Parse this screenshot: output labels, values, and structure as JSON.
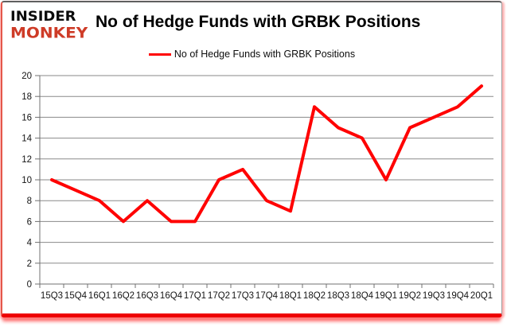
{
  "logo": {
    "line1": "INSIDER",
    "line2": "MONKEY"
  },
  "header": {
    "title": "No of Hedge Funds with GRBK Positions"
  },
  "legend": {
    "label": "No of Hedge Funds with GRBK Positions"
  },
  "colors": {
    "line": "#ff0000",
    "grid": "#8a8a8a",
    "axis": "#707070",
    "tick_text": "#151515",
    "logo_monkey": "#ce3b27",
    "border_bottom": "#ee0000"
  },
  "chart_data": {
    "type": "line",
    "title": "No of Hedge Funds with GRBK Positions",
    "legend_entries": [
      "No of Hedge Funds with GRBK Positions"
    ],
    "legend_position": "top-center",
    "grid": true,
    "categories": [
      "15Q3",
      "15Q4",
      "16Q1",
      "16Q2",
      "16Q3",
      "16Q4",
      "17Q1",
      "17Q2",
      "17Q3",
      "17Q4",
      "18Q1",
      "18Q2",
      "18Q3",
      "18Q4",
      "19Q1",
      "19Q2",
      "19Q3",
      "19Q4",
      "20Q1"
    ],
    "series": [
      {
        "name": "No of Hedge Funds with GRBK Positions",
        "values": [
          10,
          9,
          8,
          6,
          8,
          6,
          6,
          10,
          11,
          8,
          7,
          17,
          15,
          14,
          10,
          15,
          16,
          17,
          19
        ]
      }
    ],
    "xlabel": "",
    "ylabel": "",
    "ylim": [
      0,
      20
    ],
    "y_ticks": [
      0,
      2,
      4,
      6,
      8,
      10,
      12,
      14,
      16,
      18,
      20
    ]
  }
}
